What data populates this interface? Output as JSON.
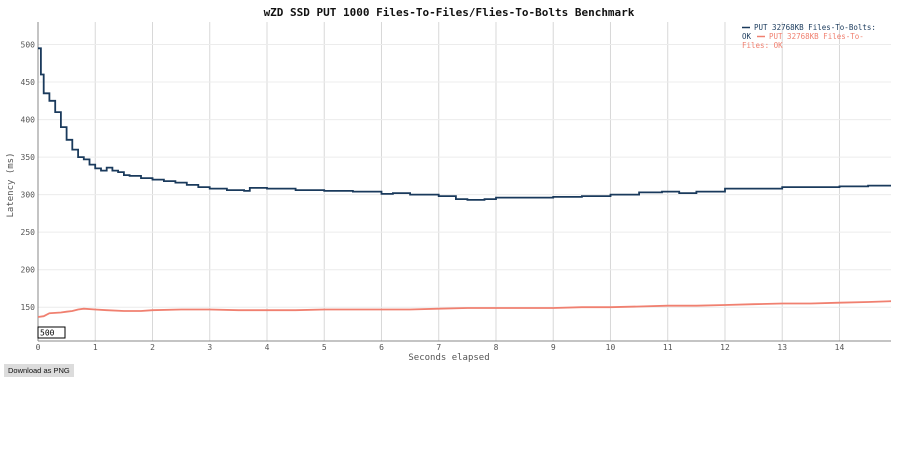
{
  "download_label": "Download as PNG",
  "chart_data": {
    "type": "line",
    "title": "wZD SSD PUT 1000 Files-To-Files/Flies-To-Bolts Benchmark",
    "xlabel": "Seconds elapsed",
    "ylabel": "Latency (ms)",
    "xlim": [
      0,
      14.9
    ],
    "ylim": [
      105,
      530
    ],
    "x_ticks": [
      0,
      1,
      2,
      3,
      4,
      5,
      6,
      7,
      8,
      9,
      10,
      11,
      12,
      13,
      14
    ],
    "y_ticks": [
      150,
      200,
      250,
      300,
      350,
      400,
      450,
      500
    ],
    "y_tick_labels": [
      "150",
      "200",
      "250",
      "300",
      "350",
      "400",
      "450",
      "500"
    ],
    "grid": true,
    "legend_position": "top-right",
    "cursor_box_label": "500",
    "series": [
      {
        "name": "PUT 32768KB Files-To-Bolts: OK",
        "color": "#1a3a5c",
        "step": true,
        "x": [
          0,
          0.05,
          0.1,
          0.2,
          0.3,
          0.4,
          0.5,
          0.6,
          0.7,
          0.8,
          0.9,
          1.0,
          1.1,
          1.2,
          1.3,
          1.4,
          1.5,
          1.6,
          1.8,
          2.0,
          2.2,
          2.4,
          2.6,
          2.8,
          3.0,
          3.3,
          3.6,
          3.7,
          4.0,
          4.5,
          5.0,
          5.5,
          6.0,
          6.2,
          6.5,
          7.0,
          7.3,
          7.5,
          7.8,
          8.0,
          8.5,
          8.9,
          9.0,
          9.5,
          10.0,
          10.5,
          10.9,
          11.2,
          11.5,
          12.0,
          12.5,
          13.0,
          13.5,
          14.0,
          14.5,
          14.9
        ],
        "y": [
          495,
          460,
          435,
          425,
          410,
          390,
          373,
          360,
          350,
          347,
          340,
          335,
          332,
          336,
          332,
          330,
          326,
          325,
          322,
          320,
          318,
          316,
          313,
          310,
          308,
          306,
          305,
          309,
          308,
          306,
          305,
          304,
          301,
          302,
          300,
          298,
          294,
          293,
          294,
          296,
          296,
          296,
          297,
          298,
          300,
          303,
          304,
          302,
          304,
          308,
          308,
          310,
          310,
          311,
          312,
          312
        ]
      },
      {
        "name": "PUT 32768KB Files-To-Files: OK",
        "color": "#f08070",
        "step": false,
        "x": [
          0,
          0.1,
          0.2,
          0.4,
          0.5,
          0.6,
          0.7,
          0.8,
          1.0,
          1.2,
          1.5,
          1.8,
          2.0,
          2.5,
          2.7,
          3.0,
          3.5,
          4.0,
          4.5,
          5.0,
          5.5,
          6.0,
          6.5,
          7.0,
          7.5,
          8.0,
          8.5,
          9.0,
          9.5,
          10.0,
          10.5,
          11.0,
          11.5,
          12.0,
          12.5,
          13.0,
          13.5,
          14.0,
          14.5,
          14.9
        ],
        "y": [
          137,
          138,
          142,
          143,
          144,
          145,
          147,
          148,
          147,
          146,
          145,
          145,
          146,
          147,
          147,
          147,
          146,
          146,
          146,
          147,
          147,
          147,
          147,
          148,
          149,
          149,
          149,
          149,
          150,
          150,
          151,
          152,
          152,
          153,
          154,
          155,
          155,
          156,
          157,
          158
        ]
      }
    ]
  }
}
